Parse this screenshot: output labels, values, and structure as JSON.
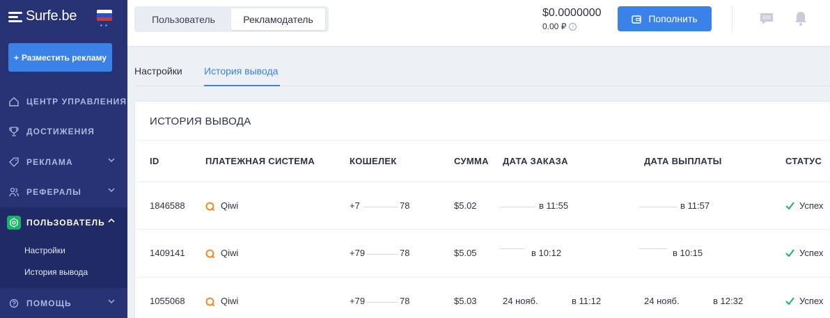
{
  "sidebar": {
    "logo_text": "Surfe.be",
    "place_ad_button": "Разместить рекламу",
    "nav": [
      {
        "label": "ЦЕНТР УПРАВЛЕНИЯ",
        "icon": "home-icon"
      },
      {
        "label": "ДОСТИЖЕНИЯ",
        "icon": "trophy-icon"
      },
      {
        "label": "РЕКЛАМА",
        "icon": "tag-icon"
      },
      {
        "label": "РЕФЕРАЛЫ",
        "icon": "users-icon"
      },
      {
        "label": "ПОЛЬЗОВАТЕЛЬ",
        "icon": "settings-icon"
      },
      {
        "label": "ПОМОЩЬ",
        "icon": "help-icon"
      }
    ],
    "subnav": [
      "Настройки",
      "История вывода"
    ]
  },
  "topbar": {
    "roles": [
      "Пользователь",
      "Рекламодатель"
    ],
    "active_role": "Рекламодатель",
    "balance_usd": "$0.0000000",
    "balance_rub": "0.00 ₽",
    "topup_button": "Пополнить"
  },
  "tabs": [
    {
      "label": "Настройки",
      "active": false
    },
    {
      "label": "История вывода",
      "active": true
    }
  ],
  "history": {
    "title": "ИСТОРИЯ ВЫВОДА",
    "columns": [
      "ID",
      "ПЛАТЕЖНАЯ СИСТЕМА",
      "КОШЕЛЕК",
      "СУММА",
      "ДАТА ЗАКАЗА",
      "ДАТА ВЫПЛАТЫ",
      "СТАТУС"
    ],
    "rows": [
      {
        "id": "1846588",
        "system": "Qiwi",
        "wallet_start": "+7",
        "wallet_end": "78",
        "amount": "$5.02",
        "order_date": "",
        "order_time": "в 11:55",
        "pay_date": "",
        "pay_time": "в 11:57",
        "status": "Успех"
      },
      {
        "id": "1409141",
        "system": "Qiwi",
        "wallet_start": "+79",
        "wallet_end": "78",
        "amount": "$5.05",
        "order_date": "",
        "order_time": "в 10:12",
        "pay_date": "",
        "pay_time": "в 10:15",
        "status": "Успех"
      },
      {
        "id": "1055068",
        "system": "Qiwi",
        "wallet_start": "+79",
        "wallet_end": "78",
        "amount": "$5.03",
        "order_date": "24 нояб.",
        "order_time": "в 11:12",
        "pay_date": "24 нояб.",
        "pay_time": "в 12:32",
        "status": "Успех"
      }
    ]
  },
  "colors": {
    "sidebar_bg": "#273375",
    "accent": "#3b82e8",
    "success": "#16b466",
    "qiwi": "#f08a24"
  }
}
